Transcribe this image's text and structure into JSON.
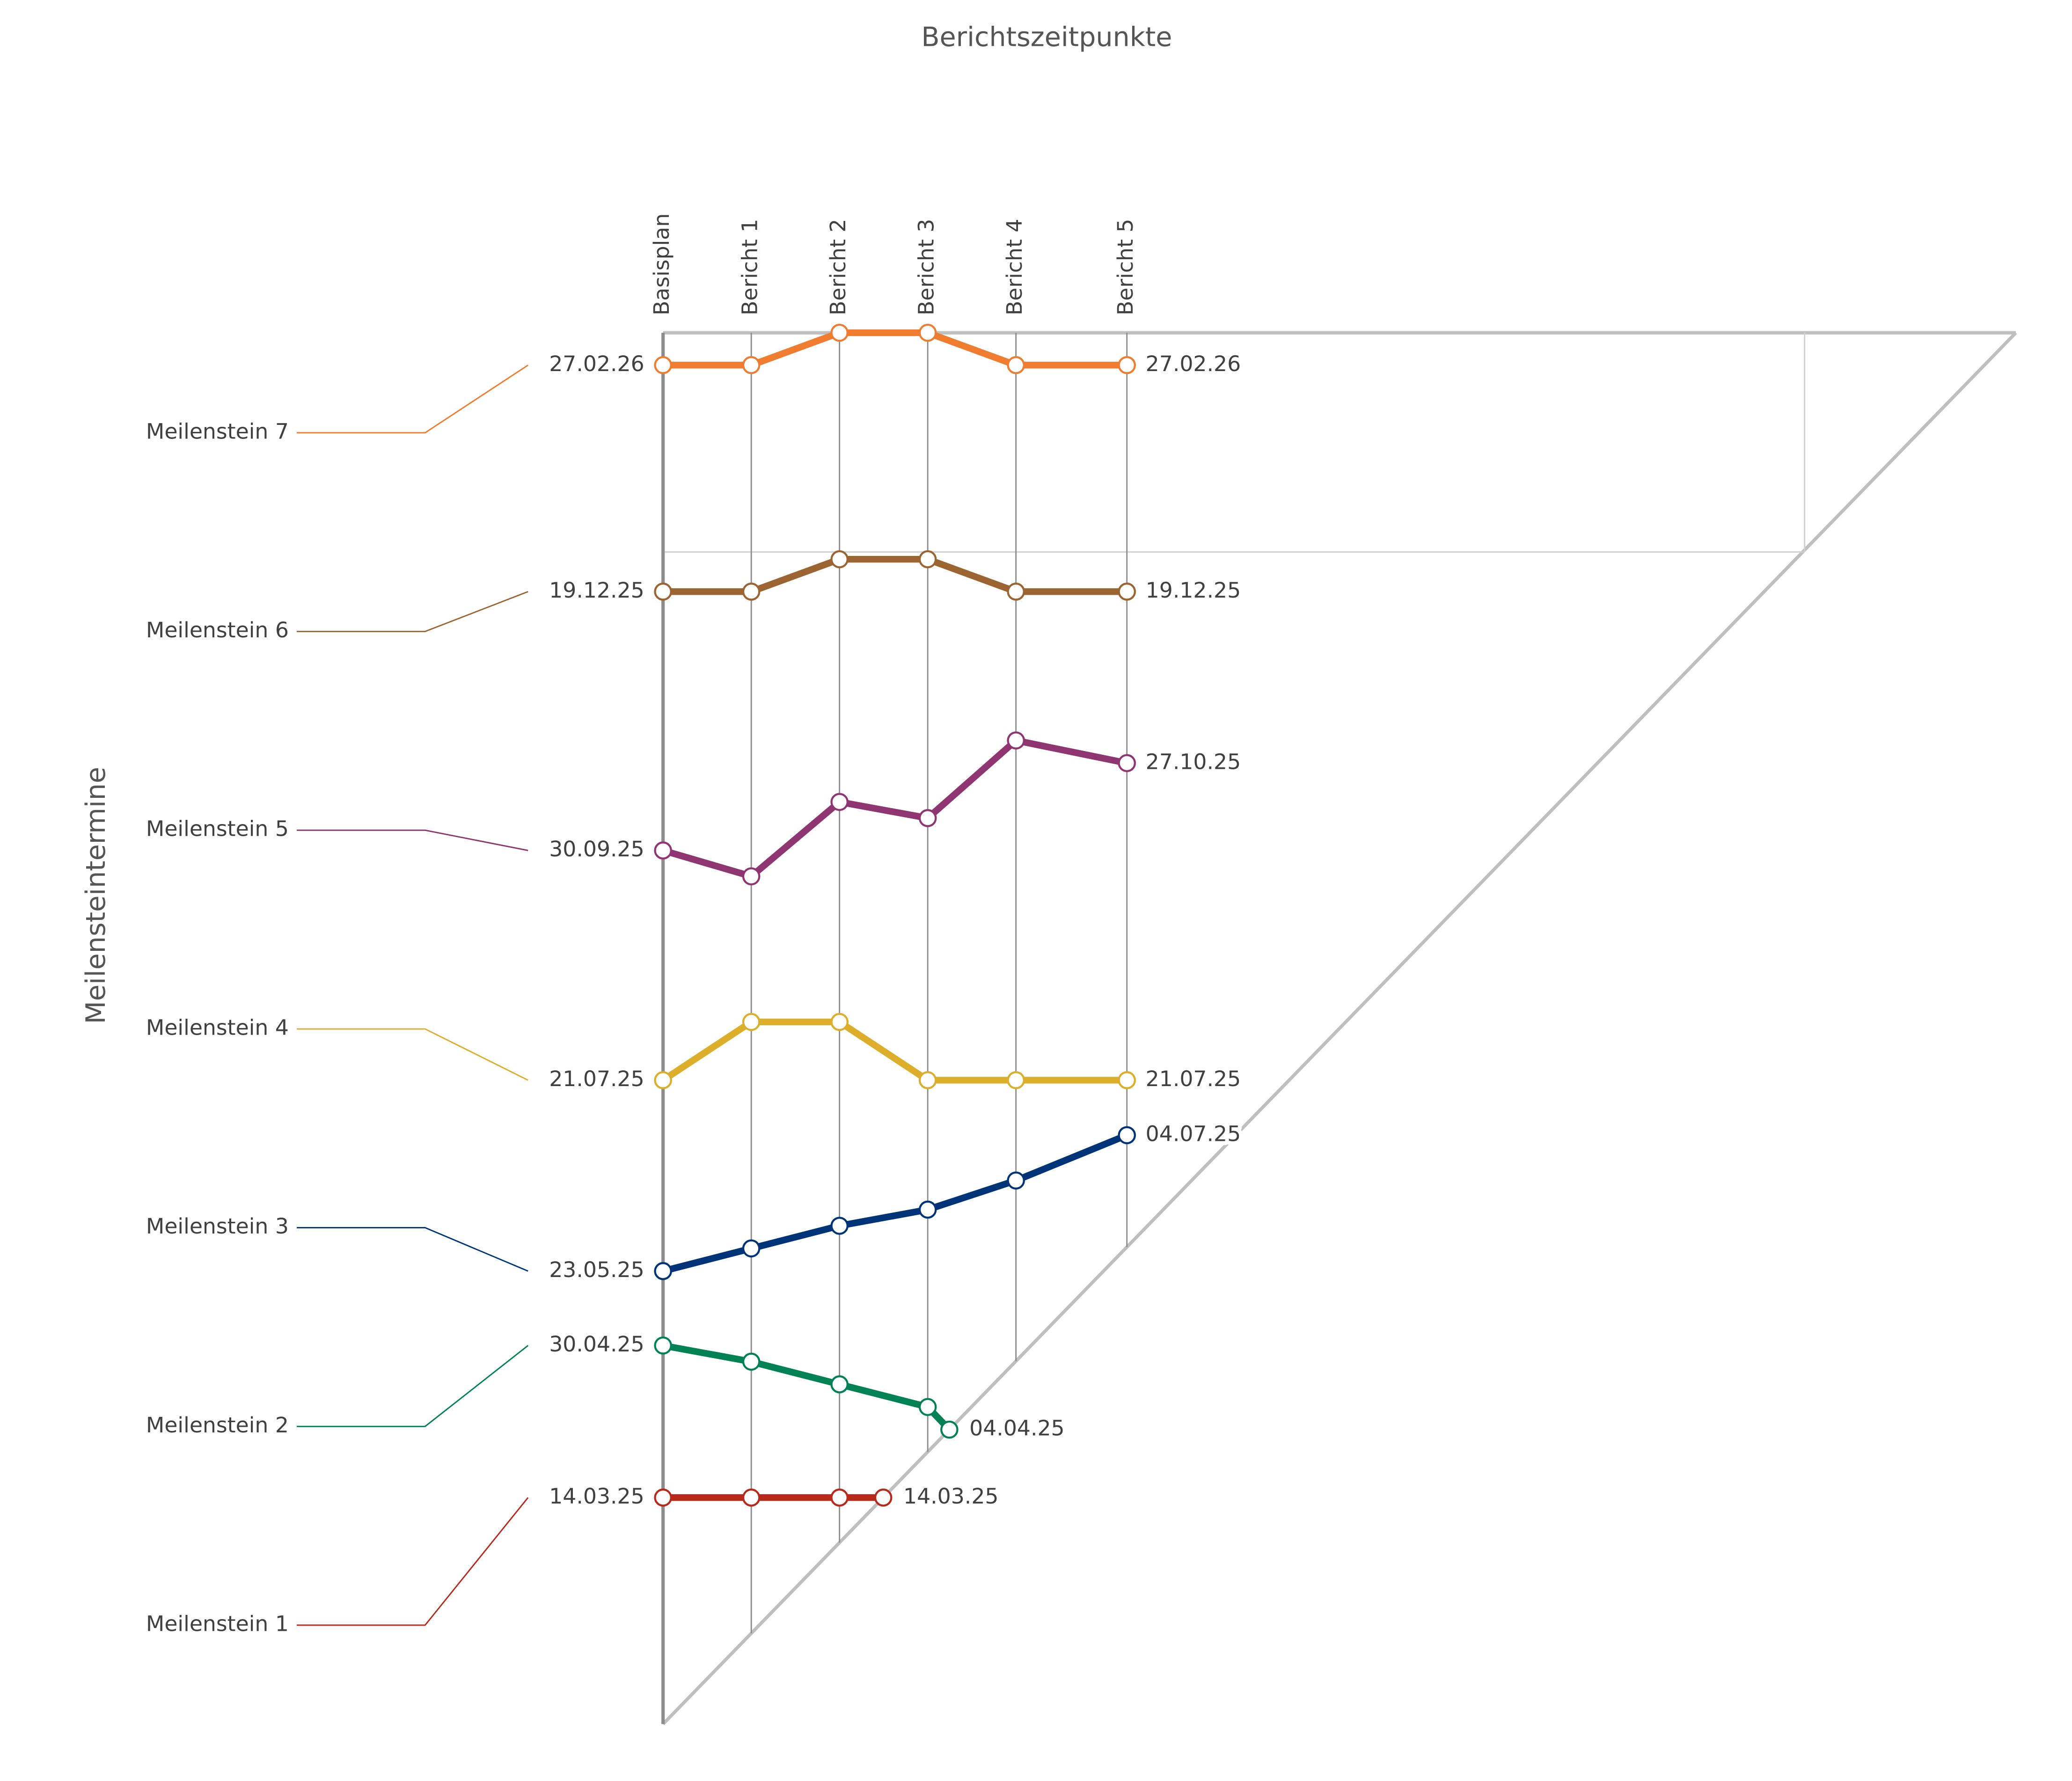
{
  "chart_data": {
    "type": "milestone-trend",
    "title": "Berichtszeitpunkte",
    "y_label": "Meilensteintermine",
    "categories": [
      "Basisplan",
      "Bericht 1",
      "Bericht 2",
      "Bericht 3",
      "Bericht 4",
      "Bericht 5"
    ],
    "ylim": [
      "2025-01-03",
      "2026-03-09"
    ],
    "series": [
      {
        "name": "Meilenstein 1",
        "color": "#b8291c",
        "values": [
          "2025-03-14",
          "2025-03-14",
          "2025-03-14",
          null,
          null,
          null
        ],
        "value_labels": [
          "14.03.25",
          null,
          null,
          null,
          null,
          null
        ],
        "reached": "2025-03-14",
        "reached_label": "14.03.25"
      },
      {
        "name": "Meilenstein 2",
        "color": "#008255",
        "values": [
          "2025-04-30",
          "2025-04-25",
          "2025-04-18",
          "2025-04-11",
          null,
          null
        ],
        "value_labels": [
          "30.04.25",
          null,
          null,
          null,
          null,
          null
        ],
        "reached": "2025-04-04",
        "reached_label": "04.04.25"
      },
      {
        "name": "Meilenstein 3",
        "color": "#003479",
        "values": [
          "2025-05-23",
          "2025-05-30",
          "2025-06-06",
          "2025-06-11",
          "2025-06-20",
          "2025-07-04"
        ],
        "value_labels": [
          "23.05.25",
          null,
          null,
          null,
          null,
          "04.07.25"
        ]
      },
      {
        "name": "Meilenstein 4",
        "color": "#dcae2a",
        "values": [
          "2025-07-21",
          "2025-08-08",
          "2025-08-08",
          "2025-07-21",
          "2025-07-21",
          "2025-07-21"
        ],
        "value_labels": [
          "21.07.25",
          null,
          null,
          null,
          null,
          "21.07.25"
        ]
      },
      {
        "name": "Meilenstein 5",
        "color": "#8e3572",
        "values": [
          "2025-09-30",
          "2025-09-22",
          "2025-10-15",
          "2025-10-10",
          "2025-11-03",
          "2025-10-27"
        ],
        "value_labels": [
          "30.09.25",
          null,
          null,
          null,
          null,
          "27.10.25"
        ]
      },
      {
        "name": "Meilenstein 6",
        "color": "#9b6430",
        "values": [
          "2025-12-19",
          "2025-12-19",
          "2025-12-29",
          "2025-12-29",
          "2025-12-19",
          "2025-12-19"
        ],
        "value_labels": [
          "19.12.25",
          null,
          null,
          null,
          null,
          "19.12.25"
        ]
      },
      {
        "name": "Meilenstein 7",
        "color": "#f07c30",
        "values": [
          "2026-02-27",
          "2026-02-27",
          "2026-03-09",
          "2026-03-09",
          "2026-02-27",
          "2026-02-27"
        ],
        "value_labels": [
          "27.02.26",
          null,
          null,
          null,
          null,
          "27.02.26"
        ]
      }
    ]
  }
}
